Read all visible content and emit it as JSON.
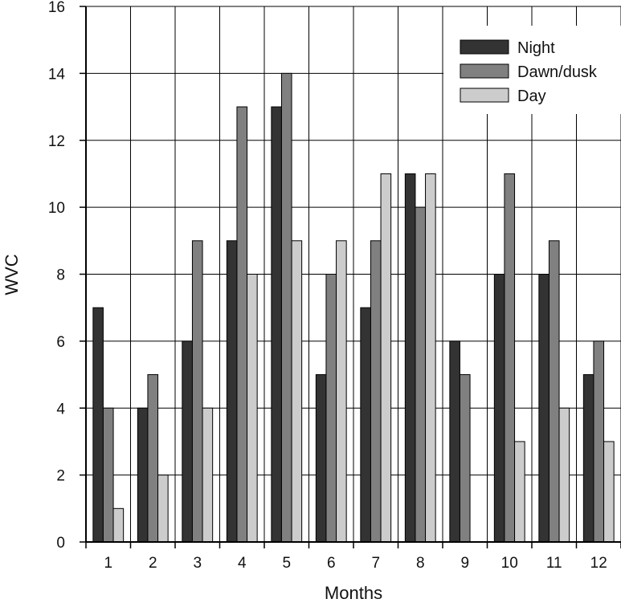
{
  "chart_data": {
    "type": "bar",
    "title": "",
    "xlabel": "Months",
    "ylabel": "WVC",
    "categories": [
      "1",
      "2",
      "3",
      "4",
      "5",
      "6",
      "7",
      "8",
      "9",
      "10",
      "11",
      "12"
    ],
    "series": [
      {
        "name": "Night",
        "color": "#333333",
        "values": [
          7,
          4,
          6,
          9,
          13,
          5,
          7,
          11,
          6,
          8,
          8,
          5
        ]
      },
      {
        "name": "Dawn/dusk",
        "color": "#808080",
        "values": [
          4,
          5,
          9,
          13,
          14,
          8,
          9,
          10,
          5,
          11,
          9,
          6
        ]
      },
      {
        "name": "Day",
        "color": "#cccccc",
        "values": [
          1,
          2,
          4,
          8,
          9,
          9,
          11,
          11,
          0,
          3,
          4,
          3
        ]
      }
    ],
    "ylim": [
      0,
      16
    ],
    "yticks": [
      "0",
      "2",
      "4",
      "6",
      "8",
      "10",
      "12",
      "14",
      "16"
    ],
    "grid": true,
    "legend_position": "top-right"
  }
}
